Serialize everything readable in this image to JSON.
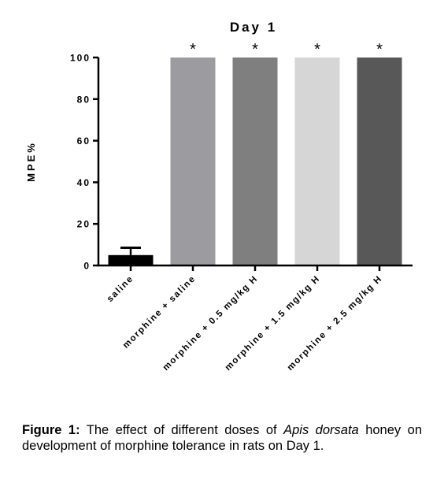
{
  "chart_data": {
    "type": "bar",
    "title": "Day 1",
    "ylabel": "MPE%",
    "xlabel": "",
    "ylim": [
      0,
      100
    ],
    "yticks": [
      0,
      20,
      40,
      60,
      80,
      100
    ],
    "categories": [
      "saline",
      "morphine + saline",
      "morphine + 0.5 mg/kg H",
      "morphine + 1.5 mg/kg H",
      "morphine + 2.5 mg/kg H"
    ],
    "values": [
      5,
      100,
      100,
      100,
      100
    ],
    "error_plus": [
      3.5,
      0,
      0,
      0,
      0
    ],
    "significance": [
      "",
      "*",
      "*",
      "*",
      "*"
    ],
    "bar_colors": [
      "#000000",
      "#9c9ca0",
      "#7f7f80",
      "#d6d6d6",
      "#585858"
    ],
    "grid": false,
    "legend": "none"
  },
  "caption": {
    "label": "Figure 1:",
    "text_before": " The effect of different doses of ",
    "italic": "Apis dorsata",
    "text_after": " honey on development of morphine tolerance in rats on Day 1."
  }
}
